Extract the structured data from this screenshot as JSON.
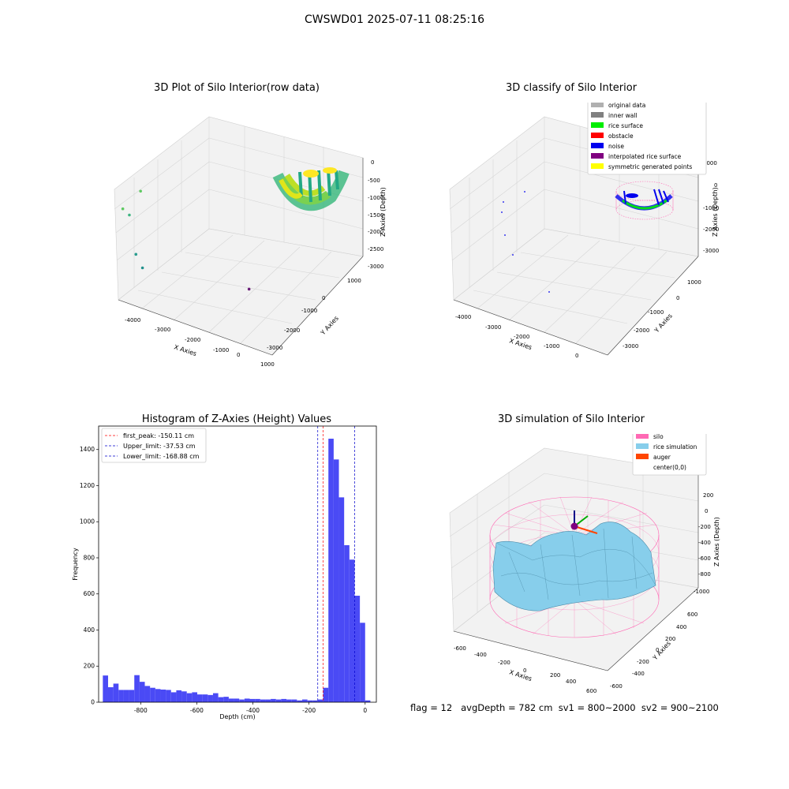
{
  "figure_title": "CWSWD01 2025-07-11 08:25:16",
  "status_line": "flag = 12   avgDepth = 782 cm  sv1 = 800~2000  sv2 = 900~2100",
  "chart_data": [
    {
      "type": "scatter",
      "subtype": "3d",
      "title": "3D Plot of Silo Interior(row data)",
      "xlabel": "X Axies",
      "ylabel": "Y Axies",
      "zlabel": "Z Axies (Depth)",
      "xticks": [
        "-4000",
        "-3000",
        "-2000",
        "-1000",
        "0",
        "1000"
      ],
      "yticks": [
        "1000",
        "0",
        "-1000",
        "-2000",
        "-3000"
      ],
      "zticks": [
        "0",
        "-500",
        "-1000",
        "-1500",
        "-2000",
        "-2500",
        "-3000"
      ],
      "points": [
        {
          "x": -4300,
          "y": 1000,
          "z": -600
        },
        {
          "x": -3500,
          "y": 1000,
          "z": -400
        },
        {
          "x": -4100,
          "y": 900,
          "z": -800
        },
        {
          "x": -3900,
          "y": 800,
          "z": -1900
        },
        {
          "x": -3700,
          "y": 700,
          "z": -2300
        },
        {
          "x": -1000,
          "y": -1500,
          "z": -3000
        }
      ],
      "colormap": "viridis"
    },
    {
      "type": "scatter",
      "subtype": "3d",
      "title": "3D classify of Silo Interior",
      "xlabel": "X Axies",
      "ylabel": "Y Axies",
      "zlabel": "Z Axies (Depth)",
      "xticks": [
        "-4000",
        "-3000",
        "-2000",
        "-1000",
        "0"
      ],
      "yticks": [
        "1000",
        "0",
        "-1000",
        "-2000",
        "-3000"
      ],
      "zticks": [
        "1000",
        "0",
        "-1000",
        "-2000",
        "-3000"
      ],
      "legend": [
        {
          "label": "original data",
          "color": "#b0b0b0"
        },
        {
          "label": "inner wall",
          "color": "#808080"
        },
        {
          "label": "rice surface",
          "color": "#00ee00"
        },
        {
          "label": "obstacle",
          "color": "#ff0000"
        },
        {
          "label": "noise",
          "color": "#0000ee"
        },
        {
          "label": "interpolated rice surface",
          "color": "#800080"
        },
        {
          "label": "symmetric generated points",
          "color": "#ffff00"
        }
      ],
      "legend_position": "top-right"
    },
    {
      "type": "bar",
      "subtype": "histogram",
      "title": "Histogram of Z-Axies (Height) Values",
      "xlabel": "Depth (cm)",
      "ylabel": "Frequency",
      "xlim": [
        -950,
        40
      ],
      "ylim": [
        0,
        1530
      ],
      "xticks": [
        -800,
        -600,
        -400,
        -200,
        0
      ],
      "yticks": [
        0,
        200,
        400,
        600,
        800,
        1000,
        1200,
        1400
      ],
      "bin_start": -935,
      "bin_width": 18.7,
      "values": [
        148,
        83,
        103,
        68,
        68,
        68,
        150,
        113,
        90,
        80,
        73,
        70,
        68,
        55,
        66,
        60,
        50,
        55,
        43,
        43,
        40,
        50,
        28,
        30,
        20,
        20,
        15,
        20,
        18,
        18,
        15,
        15,
        18,
        15,
        18,
        15,
        15,
        10,
        15,
        10,
        10,
        15,
        80,
        1460,
        1345,
        1135,
        870,
        790,
        590,
        440,
        10
      ],
      "bar_color": "#4a4af5",
      "vlines": [
        {
          "label": "first_peak: -150.11 cm",
          "x": -150.11,
          "color": "#ff0000"
        },
        {
          "label": "Upper_limit: -37.53 cm",
          "x": -37.53,
          "color": "#0000cc"
        },
        {
          "label": "Lower_limit: -168.88 cm",
          "x": -168.88,
          "color": "#0000cc"
        }
      ],
      "legend_position": "top-left"
    },
    {
      "type": "other",
      "subtype": "3d-surface",
      "title": "3D simulation of Silo Interior",
      "xlabel": "X Axies",
      "ylabel": "Y Axies",
      "zlabel": "Z Axies (Depth)",
      "xticks": [
        "-600",
        "-400",
        "-200",
        "0",
        "200",
        "400",
        "600"
      ],
      "yticks": [
        "600",
        "400",
        "200",
        "0",
        "-200",
        "-400",
        "-600"
      ],
      "zticks": [
        "200",
        "0",
        "-200",
        "-400",
        "-600",
        "-800",
        "-1000"
      ],
      "legend": [
        {
          "label": "silo",
          "color": "#ff69b4"
        },
        {
          "label": "rice simulation",
          "color": "#87ceeb"
        },
        {
          "label": "auger",
          "color": "#ff4500"
        },
        {
          "label": "center(0,0)",
          "color": ""
        }
      ],
      "legend_position": "top-right"
    }
  ]
}
